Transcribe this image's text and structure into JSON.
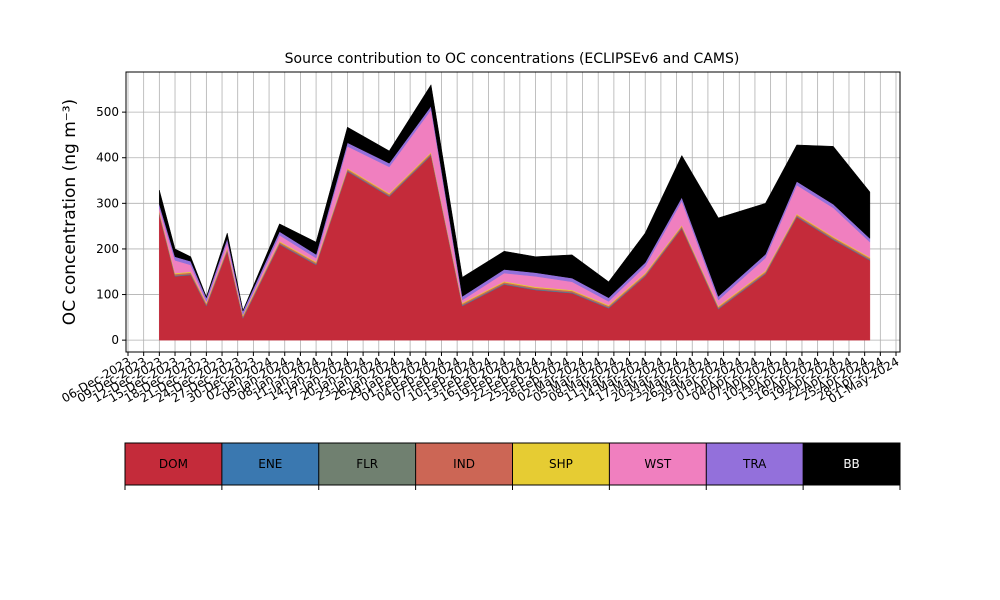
{
  "chart_data": {
    "type": "stackedarea",
    "title": "Source contribution to OC concentrations (ECLIPSEv6 and CAMS)",
    "ylabel": "OC concentration (ng m⁻³)",
    "x": [
      "2023-12-12",
      "2023-12-15",
      "2023-12-18",
      "2023-12-21",
      "2023-12-25",
      "2023-12-28",
      "2024-01-04",
      "2024-01-11",
      "2024-01-17",
      "2024-01-25",
      "2024-02-02",
      "2024-02-08",
      "2024-02-16",
      "2024-02-22",
      "2024-02-29",
      "2024-03-07",
      "2024-03-14",
      "2024-03-21",
      "2024-03-28",
      "2024-04-06",
      "2024-04-12",
      "2024-04-19",
      "2024-04-26"
    ],
    "series": [
      {
        "name": "DOM",
        "color": "#c42b3a",
        "values": [
          275,
          140,
          143,
          75,
          195,
          48,
          210,
          165,
          370,
          315,
          405,
          75,
          122,
          110,
          103,
          70,
          140,
          245,
          68,
          145,
          270,
          220,
          175
        ]
      },
      {
        "name": "ENE",
        "color": "#3a78b0",
        "values": [
          1,
          1,
          1,
          1,
          1,
          1,
          1,
          1,
          1,
          1,
          1,
          1,
          1,
          1,
          1,
          1,
          1,
          1,
          1,
          1,
          1,
          1,
          1
        ]
      },
      {
        "name": "FLR",
        "color": "#708070",
        "values": [
          1,
          1,
          1,
          1,
          1,
          1,
          1,
          1,
          1,
          1,
          1,
          1,
          1,
          1,
          1,
          1,
          1,
          1,
          1,
          1,
          1,
          1,
          1
        ]
      },
      {
        "name": "IND",
        "color": "#cc6655",
        "values": [
          3,
          3,
          3,
          3,
          3,
          3,
          3,
          3,
          3,
          3,
          3,
          3,
          3,
          3,
          3,
          3,
          3,
          3,
          3,
          3,
          3,
          3,
          3
        ]
      },
      {
        "name": "SHP",
        "color": "#e6cc33",
        "values": [
          2,
          2,
          2,
          2,
          2,
          2,
          2,
          2,
          2,
          2,
          2,
          2,
          2,
          2,
          2,
          2,
          2,
          2,
          2,
          2,
          2,
          2,
          2
        ]
      },
      {
        "name": "WST",
        "color": "#f07fbf",
        "values": [
          8,
          28,
          15,
          3,
          13,
          1,
          13,
          8,
          48,
          58,
          93,
          6,
          18,
          23,
          18,
          8,
          15,
          53,
          13,
          28,
          63,
          63,
          33
        ]
      },
      {
        "name": "TRA",
        "color": "#9370db",
        "values": [
          8,
          8,
          8,
          8,
          8,
          8,
          8,
          8,
          8,
          8,
          8,
          8,
          8,
          8,
          8,
          8,
          8,
          8,
          8,
          8,
          8,
          8,
          8
        ]
      },
      {
        "name": "BB",
        "color": "#000000",
        "values": [
          31,
          17,
          10,
          2,
          12,
          1,
          17,
          27,
          34,
          27,
          47,
          42,
          40,
          35,
          51,
          35,
          65,
          92,
          172,
          112,
          80,
          127,
          102
        ]
      }
    ],
    "xlim": [
      "2023-12-06",
      "2024-05-01"
    ],
    "xticks": [
      {
        "value": "2023-12-06",
        "label": "06-Dec-2023"
      },
      {
        "value": "2023-12-09",
        "label": "09-Dec-2023"
      },
      {
        "value": "2023-12-12",
        "label": "12-Dec-2023"
      },
      {
        "value": "2023-12-15",
        "label": "15-Dec-2023"
      },
      {
        "value": "2023-12-18",
        "label": "18-Dec-2023"
      },
      {
        "value": "2023-12-21",
        "label": "21-Dec-2023"
      },
      {
        "value": "2023-12-24",
        "label": "24-Dec-2023"
      },
      {
        "value": "2023-12-27",
        "label": "27-Dec-2023"
      },
      {
        "value": "2023-12-30",
        "label": "30-Dec-2023"
      },
      {
        "value": "2024-01-02",
        "label": "02-Jan-2024"
      },
      {
        "value": "2024-01-05",
        "label": "05-Jan-2024"
      },
      {
        "value": "2024-01-08",
        "label": "08-Jan-2024"
      },
      {
        "value": "2024-01-11",
        "label": "11-Jan-2024"
      },
      {
        "value": "2024-01-14",
        "label": "14-Jan-2024"
      },
      {
        "value": "2024-01-17",
        "label": "17-Jan-2024"
      },
      {
        "value": "2024-01-20",
        "label": "20-Jan-2024"
      },
      {
        "value": "2024-01-23",
        "label": "23-Jan-2024"
      },
      {
        "value": "2024-01-26",
        "label": "26-Jan-2024"
      },
      {
        "value": "2024-01-29",
        "label": "29-Jan-2024"
      },
      {
        "value": "2024-02-01",
        "label": "01-Feb-2024"
      },
      {
        "value": "2024-02-04",
        "label": "04-Feb-2024"
      },
      {
        "value": "2024-02-07",
        "label": "07-Feb-2024"
      },
      {
        "value": "2024-02-10",
        "label": "10-Feb-2024"
      },
      {
        "value": "2024-02-13",
        "label": "13-Feb-2024"
      },
      {
        "value": "2024-02-16",
        "label": "16-Feb-2024"
      },
      {
        "value": "2024-02-19",
        "label": "19-Feb-2024"
      },
      {
        "value": "2024-02-22",
        "label": "22-Feb-2024"
      },
      {
        "value": "2024-02-25",
        "label": "25-Feb-2024"
      },
      {
        "value": "2024-02-28",
        "label": "28-Feb-2024"
      },
      {
        "value": "2024-03-02",
        "label": "02-Mar-2024"
      },
      {
        "value": "2024-03-05",
        "label": "05-Mar-2024"
      },
      {
        "value": "2024-03-08",
        "label": "08-Mar-2024"
      },
      {
        "value": "2024-03-11",
        "label": "11-Mar-2024"
      },
      {
        "value": "2024-03-14",
        "label": "14-Mar-2024"
      },
      {
        "value": "2024-03-17",
        "label": "17-Mar-2024"
      },
      {
        "value": "2024-03-20",
        "label": "20-Mar-2024"
      },
      {
        "value": "2024-03-23",
        "label": "23-Mar-2024"
      },
      {
        "value": "2024-03-26",
        "label": "26-Mar-2024"
      },
      {
        "value": "2024-03-29",
        "label": "29-Mar-2024"
      },
      {
        "value": "2024-04-01",
        "label": "01-Apr-2024"
      },
      {
        "value": "2024-04-04",
        "label": "04-Apr-2024"
      },
      {
        "value": "2024-04-07",
        "label": "07-Apr-2024"
      },
      {
        "value": "2024-04-10",
        "label": "10-Apr-2024"
      },
      {
        "value": "2024-04-13",
        "label": "13-Apr-2024"
      },
      {
        "value": "2024-04-16",
        "label": "16-Apr-2024"
      },
      {
        "value": "2024-04-19",
        "label": "19-Apr-2024"
      },
      {
        "value": "2024-04-22",
        "label": "22-Apr-2024"
      },
      {
        "value": "2024-04-25",
        "label": "25-Apr-2024"
      },
      {
        "value": "2024-04-28",
        "label": "28-Apr-2024"
      },
      {
        "value": "2024-05-01",
        "label": "01-May-2024"
      }
    ],
    "ylim": [
      -26,
      588
    ],
    "yticks": [
      0,
      100,
      200,
      300,
      400,
      500
    ],
    "grid": true
  }
}
